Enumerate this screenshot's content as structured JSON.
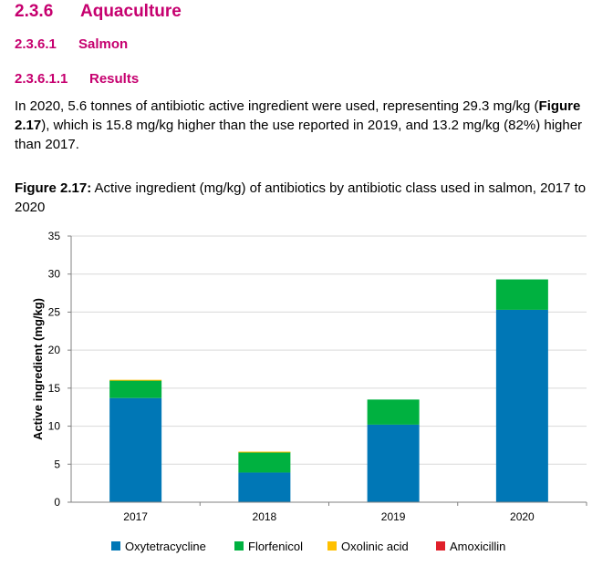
{
  "heading1": {
    "number": "2.3.6",
    "title": "Aquaculture"
  },
  "heading2": {
    "number": "2.3.6.1",
    "title": "Salmon"
  },
  "heading3": {
    "number": "2.3.6.1.1",
    "title": "Results"
  },
  "paragraph": {
    "part1": "In 2020, 5.6 tonnes of antibiotic active ingredient were used, representing 29.3 mg/kg (",
    "figref": "Figure 2.17",
    "part2": "), which is 15.8 mg/kg higher than the use reported in 2019, and 13.2 mg/kg (82%) higher than 2017."
  },
  "caption": {
    "label": "Figure 2.17:",
    "text": " Active ingredient (mg/kg) of antibiotics by antibiotic class used in salmon, 2017 to 2020"
  },
  "chart_data": {
    "type": "bar",
    "stacked": true,
    "categories": [
      "2017",
      "2018",
      "2019",
      "2020"
    ],
    "series": [
      {
        "name": "Oxytetracycline",
        "color": "#0077b6",
        "values": [
          13.7,
          3.9,
          10.2,
          25.3
        ]
      },
      {
        "name": "Florfenicol",
        "color": "#00b140",
        "values": [
          2.3,
          2.7,
          3.3,
          4.0
        ]
      },
      {
        "name": "Oxolinic acid",
        "color": "#ffc000",
        "values": [
          0.1,
          0.05,
          0,
          0
        ]
      },
      {
        "name": "Amoxicillin",
        "color": "#e0202a",
        "values": [
          0,
          0,
          0,
          0
        ]
      }
    ],
    "ylabel": "Active ingredient (mg/kg)",
    "xlabel": "",
    "ylim": [
      0,
      35
    ],
    "yticks": [
      0,
      5,
      10,
      15,
      20,
      25,
      30,
      35
    ],
    "grid": true,
    "legend": "bottom"
  }
}
